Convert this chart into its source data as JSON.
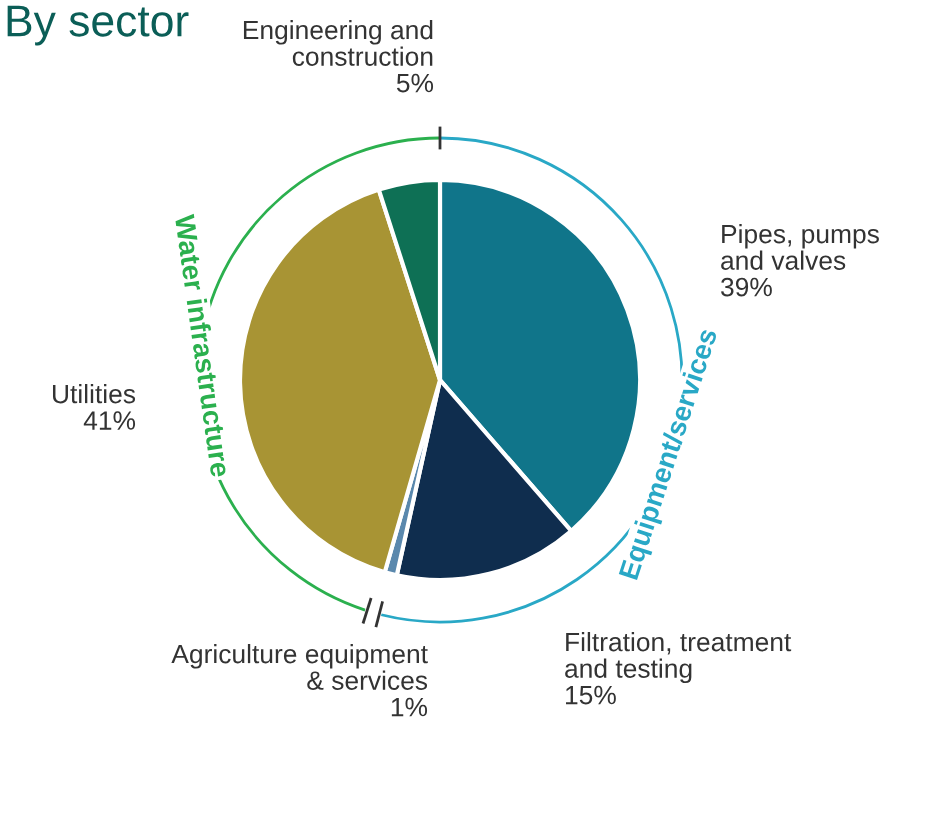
{
  "chart_data": {
    "type": "pie",
    "title": "By sector",
    "categories": [
      "Pipes, pumps\nand valves",
      "Filtration, treatment\nand testing",
      "Agriculture equipment\n& services",
      "Utilities",
      "Engineering and\nconstruction"
    ],
    "values": [
      39,
      15,
      1,
      41,
      5
    ],
    "value_labels": [
      "39%",
      "15%",
      "1%",
      "41%",
      "5%"
    ],
    "colors": [
      "#10758a",
      "#0f2d4e",
      "#5a88ad",
      "#a89434",
      "#0e7055"
    ],
    "annotations": [
      "Equipment/services",
      "Water infrastructure"
    ]
  }
}
